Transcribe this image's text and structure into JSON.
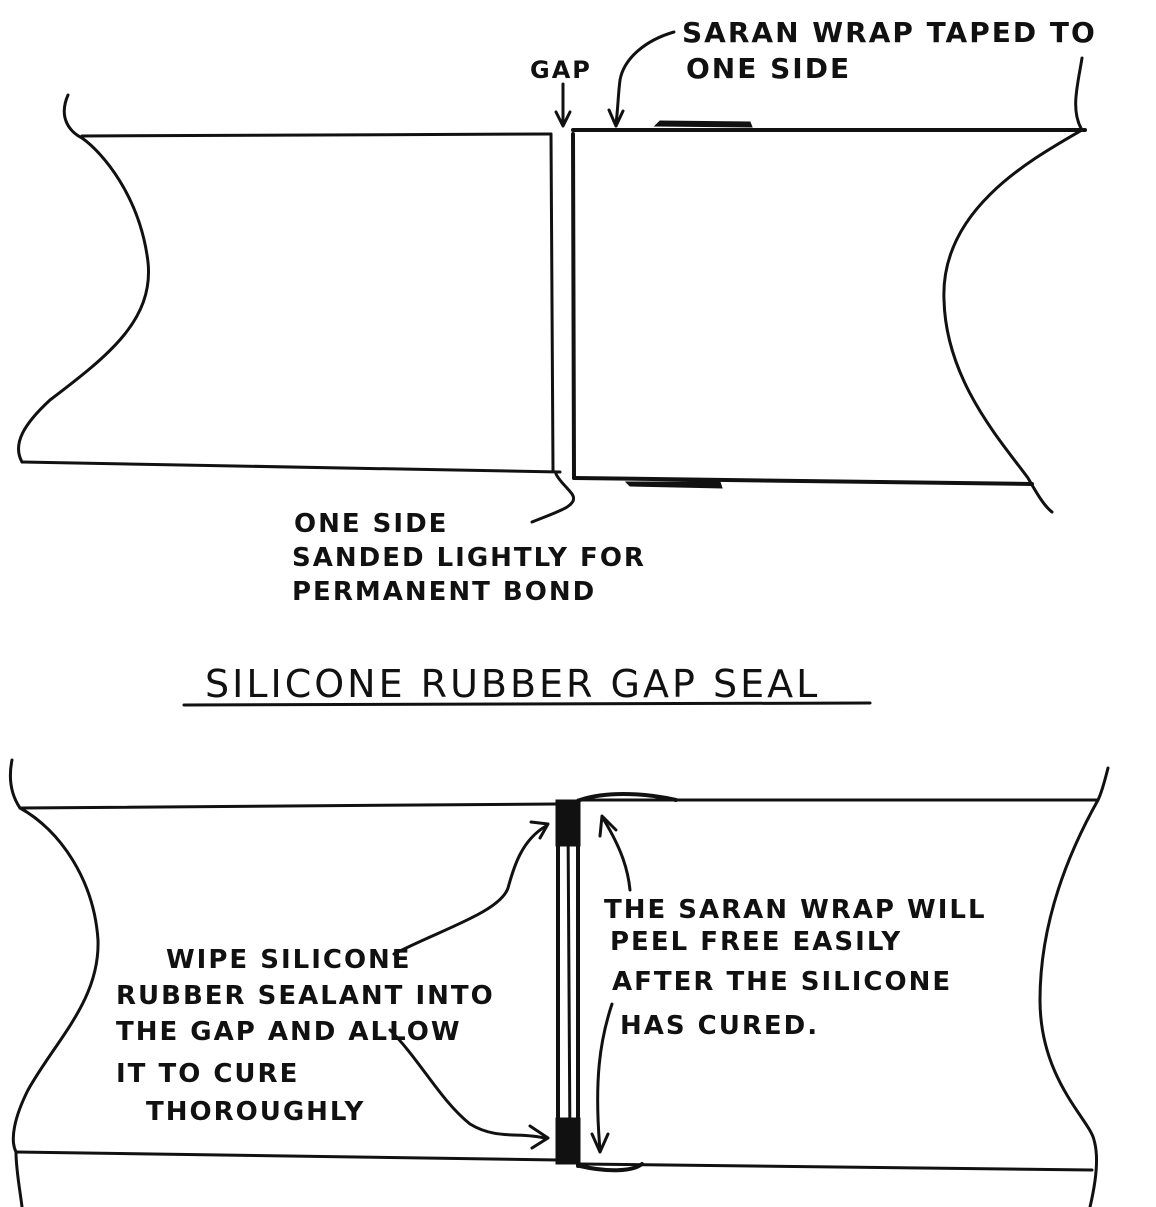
{
  "top_diagram": {
    "gap_label": "GAP",
    "saran_label_line1": "SARAN WRAP TAPED TO",
    "saran_label_line2": "ONE SIDE",
    "sanded_label_line1": "ONE SIDE",
    "sanded_label_line2": "SANDED LIGHTLY FOR",
    "sanded_label_line3": "PERMANENT BOND"
  },
  "title": "SILICONE RUBBER GAP SEAL",
  "bottom_diagram": {
    "wipe_label_line1": "WIPE SILICONE",
    "wipe_label_line2": "RUBBER SEALANT INTO",
    "wipe_label_line3": "THE GAP AND ALLOW",
    "wipe_label_line4": "IT TO CURE",
    "wipe_label_line5": "THOROUGHLY",
    "peel_label_line1": "THE SARAN WRAP WILL",
    "peel_label_line2": "PEEL FREE EASILY",
    "peel_label_line3": "AFTER THE SILICONE",
    "peel_label_line4": "HAS CURED."
  },
  "colors": {
    "ink": "#111111",
    "paper": "#ffffff"
  }
}
